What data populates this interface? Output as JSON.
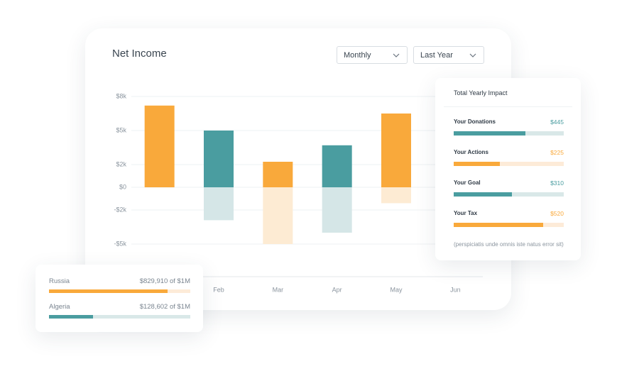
{
  "header": {
    "title": "Net Income",
    "filters": [
      "Monthly",
      "Last Year"
    ]
  },
  "chart_data": {
    "type": "bar",
    "categories": [
      null,
      "Feb",
      "Mar",
      "Apr",
      "May",
      "Jun"
    ],
    "series": [
      {
        "colors": [
          "#f9a93b",
          "#4a9da0",
          "#f9a93b",
          "#4a9da0",
          "#f9a93b",
          "#4a9da0"
        ],
        "values": [
          7200,
          5000,
          2250,
          3700,
          6500,
          null
        ]
      },
      {
        "colors": [
          "#fdebd3",
          "#d5e6e7",
          "#fdebd3",
          "#d5e6e7",
          "#fdebd3",
          "#d5e6e7"
        ],
        "values": [
          null,
          -2900,
          -5000,
          -4000,
          -1400,
          null
        ]
      }
    ],
    "ylim": [
      -8000,
      9000
    ],
    "yticks": [
      {
        "value": 8000,
        "label": "$8k"
      },
      {
        "value": 5000,
        "label": "$5k"
      },
      {
        "value": 2000,
        "label": "$2k"
      },
      {
        "value": 0,
        "label": "$0"
      },
      {
        "value": -2000,
        "label": "-$2k"
      },
      {
        "value": -5000,
        "label": "-$5k"
      }
    ],
    "grid": true
  },
  "impact": {
    "title": "Total Yearly Impact",
    "items": [
      {
        "label": "Your Donations",
        "value": 445,
        "value_label": "$445",
        "fill": 65,
        "color": "#4a9da0",
        "track": "#d9e8e8"
      },
      {
        "label": "Your Actions",
        "value": 225,
        "value_label": "$225",
        "fill": 42,
        "color": "#f9a93b",
        "track": "#fdebd8"
      },
      {
        "label": "Your Goal",
        "value": 310,
        "value_label": "$310",
        "fill": 53,
        "color": "#4a9da0",
        "track": "#d9e8e8"
      },
      {
        "label": "Your Tax",
        "value": 520,
        "value_label": "$520",
        "fill": 81,
        "color": "#f9a93b",
        "track": "#fdebd8"
      }
    ],
    "note": "(perspiciatis unde omnis iste natus error sit)"
  },
  "regions": [
    {
      "label": "Russia",
      "value": 829910,
      "value_label": "$829,910 of $1M",
      "fill": 84,
      "color": "#f9a93b",
      "track": "#fdebd8"
    },
    {
      "label": "Algeria",
      "value": 128602,
      "value_label": "$128,602 of $1M",
      "fill": 31,
      "color": "#4a9da0",
      "track": "#d9e8e8"
    }
  ]
}
